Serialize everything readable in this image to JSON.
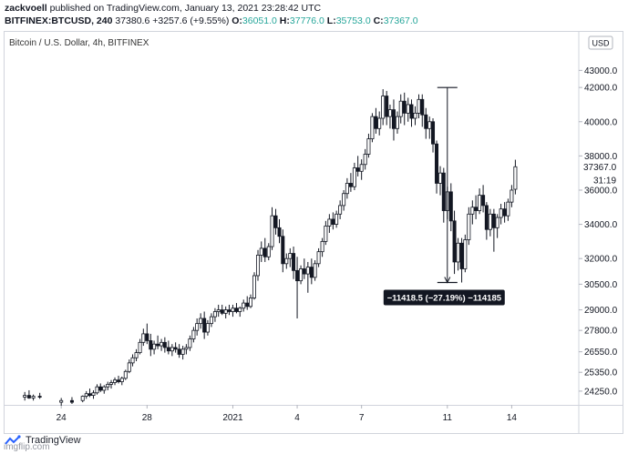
{
  "header": {
    "author": "zackvoell",
    "published": "published on TradingView.com, January 13, 2021 23:28:42 UTC",
    "symbol": "BITFINEX:BTCUSD, 240",
    "price": "37380.6",
    "change": "+3257.6 (+9.55%)",
    "o_label": "O:",
    "o_value": "36051.0",
    "h_label": "H:",
    "h_value": "37776.0",
    "l_label": "L:",
    "l_value": "35753.0",
    "c_label": "C:",
    "c_value": "37367.0"
  },
  "chart_title": "Bitcoin / U.S. Dollar, 4h, BITFINEX",
  "currency_button": "USD",
  "footer": {
    "brand": "TradingView",
    "watermark": "imgflip.com"
  },
  "colors": {
    "candle_up": "#ffffff",
    "candle_down": "#131722",
    "badge_bg": "#131722",
    "accent_green": "#26a69a"
  },
  "chart_data": {
    "type": "candlestick",
    "title": "Bitcoin / U.S. Dollar, 4h, BITFINEX",
    "xlabel": "",
    "ylabel": "",
    "ylim": [
      23500,
      45200
    ],
    "y_ticks": [
      "24250.0",
      "25350.0",
      "26550.0",
      "27800.0",
      "29000.0",
      "30500.0",
      "32000.0",
      "34000.0",
      "36000.0",
      "38000.0",
      "40000.0",
      "42000.0",
      "43000.0"
    ],
    "x_ticks": [
      {
        "label": "24",
        "x": 0
      },
      {
        "label": "28",
        "x": 4
      },
      {
        "label": "2021",
        "x": 8
      },
      {
        "label": "4",
        "x": 11
      },
      {
        "label": "7",
        "x": 14
      },
      {
        "label": "11",
        "x": 18
      },
      {
        "label": "14",
        "x": 21
      }
    ],
    "x_range": [
      -2.6,
      24
    ],
    "last_price": "37367.0",
    "countdown": "31:19",
    "candles": [
      {
        "x": -1.7,
        "o": 23900,
        "h": 24200,
        "l": 23700,
        "c": 24000
      },
      {
        "x": -1.5,
        "o": 24000,
        "h": 24300,
        "l": 23800,
        "c": 23850
      },
      {
        "x": -1.3,
        "o": 23850,
        "h": 24050,
        "l": 23700,
        "c": 23950
      },
      {
        "x": -1.0,
        "o": 23950,
        "h": 24150,
        "l": 23800,
        "c": 23900
      },
      {
        "x": 0.0,
        "o": 23600,
        "h": 23850,
        "l": 23400,
        "c": 23700
      },
      {
        "x": 0.5,
        "o": 23700,
        "h": 23900,
        "l": 23500,
        "c": 23600
      },
      {
        "x": 1.0,
        "o": 23700,
        "h": 24000,
        "l": 23600,
        "c": 23950
      },
      {
        "x": 1.17,
        "o": 23950,
        "h": 24250,
        "l": 23800,
        "c": 24100
      },
      {
        "x": 1.33,
        "o": 24100,
        "h": 24400,
        "l": 23900,
        "c": 24000
      },
      {
        "x": 1.5,
        "o": 24000,
        "h": 24300,
        "l": 23800,
        "c": 24150
      },
      {
        "x": 1.67,
        "o": 24150,
        "h": 24650,
        "l": 24050,
        "c": 24500
      },
      {
        "x": 1.83,
        "o": 24500,
        "h": 24700,
        "l": 24200,
        "c": 24300
      },
      {
        "x": 2.0,
        "o": 24300,
        "h": 24600,
        "l": 24100,
        "c": 24500
      },
      {
        "x": 2.17,
        "o": 24500,
        "h": 24800,
        "l": 24300,
        "c": 24650
      },
      {
        "x": 2.33,
        "o": 24650,
        "h": 24900,
        "l": 24400,
        "c": 24750
      },
      {
        "x": 2.5,
        "o": 24750,
        "h": 25050,
        "l": 24600,
        "c": 24900
      },
      {
        "x": 2.67,
        "o": 24900,
        "h": 25150,
        "l": 24700,
        "c": 24800
      },
      {
        "x": 2.83,
        "o": 24800,
        "h": 25100,
        "l": 24600,
        "c": 25000
      },
      {
        "x": 3.0,
        "o": 25000,
        "h": 25500,
        "l": 24900,
        "c": 25400
      },
      {
        "x": 3.17,
        "o": 25400,
        "h": 26100,
        "l": 25300,
        "c": 25900
      },
      {
        "x": 3.33,
        "o": 25900,
        "h": 26400,
        "l": 25700,
        "c": 26200
      },
      {
        "x": 3.5,
        "o": 26200,
        "h": 26700,
        "l": 26000,
        "c": 26500
      },
      {
        "x": 3.67,
        "o": 26500,
        "h": 27300,
        "l": 26400,
        "c": 27100
      },
      {
        "x": 3.83,
        "o": 27100,
        "h": 27900,
        "l": 26900,
        "c": 27600
      },
      {
        "x": 4.0,
        "o": 27600,
        "h": 28200,
        "l": 27000,
        "c": 27200
      },
      {
        "x": 4.17,
        "o": 27200,
        "h": 27600,
        "l": 26300,
        "c": 26700
      },
      {
        "x": 4.33,
        "o": 26700,
        "h": 27200,
        "l": 26400,
        "c": 27000
      },
      {
        "x": 4.5,
        "o": 27000,
        "h": 27500,
        "l": 26700,
        "c": 26900
      },
      {
        "x": 4.67,
        "o": 26900,
        "h": 27300,
        "l": 26600,
        "c": 27100
      },
      {
        "x": 4.83,
        "o": 27100,
        "h": 27400,
        "l": 26500,
        "c": 26800
      },
      {
        "x": 5.0,
        "o": 26800,
        "h": 27200,
        "l": 26400,
        "c": 26600
      },
      {
        "x": 5.17,
        "o": 26600,
        "h": 27000,
        "l": 26300,
        "c": 26800
      },
      {
        "x": 5.33,
        "o": 26800,
        "h": 27100,
        "l": 26500,
        "c": 26700
      },
      {
        "x": 5.5,
        "o": 26700,
        "h": 27000,
        "l": 26200,
        "c": 26400
      },
      {
        "x": 5.67,
        "o": 26400,
        "h": 26900,
        "l": 26100,
        "c": 26700
      },
      {
        "x": 5.83,
        "o": 26700,
        "h": 27000,
        "l": 26400,
        "c": 26800
      },
      {
        "x": 6.0,
        "o": 26800,
        "h": 27500,
        "l": 26600,
        "c": 27300
      },
      {
        "x": 6.17,
        "o": 27300,
        "h": 28000,
        "l": 27100,
        "c": 27800
      },
      {
        "x": 6.33,
        "o": 27800,
        "h": 28500,
        "l": 27500,
        "c": 28200
      },
      {
        "x": 6.5,
        "o": 28200,
        "h": 28800,
        "l": 27900,
        "c": 28500
      },
      {
        "x": 6.67,
        "o": 28500,
        "h": 28900,
        "l": 27300,
        "c": 27700
      },
      {
        "x": 6.83,
        "o": 27700,
        "h": 28400,
        "l": 27500,
        "c": 28200
      },
      {
        "x": 7.0,
        "o": 28200,
        "h": 28800,
        "l": 28000,
        "c": 28600
      },
      {
        "x": 7.17,
        "o": 28600,
        "h": 29100,
        "l": 28300,
        "c": 28900
      },
      {
        "x": 7.33,
        "o": 28900,
        "h": 29300,
        "l": 28600,
        "c": 29000
      },
      {
        "x": 7.5,
        "o": 29000,
        "h": 29300,
        "l": 28700,
        "c": 28800
      },
      {
        "x": 7.67,
        "o": 28800,
        "h": 29200,
        "l": 28500,
        "c": 29000
      },
      {
        "x": 7.83,
        "o": 29000,
        "h": 29300,
        "l": 28700,
        "c": 28900
      },
      {
        "x": 8.0,
        "o": 28900,
        "h": 29300,
        "l": 28600,
        "c": 29100
      },
      {
        "x": 8.17,
        "o": 29100,
        "h": 29400,
        "l": 28800,
        "c": 28900
      },
      {
        "x": 8.33,
        "o": 28900,
        "h": 29200,
        "l": 28600,
        "c": 29100
      },
      {
        "x": 8.5,
        "o": 29100,
        "h": 29600,
        "l": 28900,
        "c": 29400
      },
      {
        "x": 8.67,
        "o": 29400,
        "h": 29800,
        "l": 29000,
        "c": 29200
      },
      {
        "x": 8.83,
        "o": 29200,
        "h": 29900,
        "l": 29100,
        "c": 29700
      },
      {
        "x": 9.0,
        "o": 29700,
        "h": 31200,
        "l": 29600,
        "c": 31000
      },
      {
        "x": 9.17,
        "o": 31000,
        "h": 32500,
        "l": 30700,
        "c": 32200
      },
      {
        "x": 9.33,
        "o": 32200,
        "h": 33000,
        "l": 31800,
        "c": 32600
      },
      {
        "x": 9.5,
        "o": 32600,
        "h": 33200,
        "l": 31800,
        "c": 32100
      },
      {
        "x": 9.67,
        "o": 32100,
        "h": 32900,
        "l": 31900,
        "c": 32700
      },
      {
        "x": 9.83,
        "o": 32700,
        "h": 35000,
        "l": 32500,
        "c": 34500
      },
      {
        "x": 10.0,
        "o": 34500,
        "h": 34900,
        "l": 33400,
        "c": 33800
      },
      {
        "x": 10.17,
        "o": 33800,
        "h": 34300,
        "l": 32900,
        "c": 33300
      },
      {
        "x": 10.33,
        "o": 33300,
        "h": 33700,
        "l": 31200,
        "c": 31700
      },
      {
        "x": 10.5,
        "o": 31700,
        "h": 32300,
        "l": 31400,
        "c": 32000
      },
      {
        "x": 10.67,
        "o": 32000,
        "h": 32600,
        "l": 31500,
        "c": 32300
      },
      {
        "x": 10.83,
        "o": 32300,
        "h": 32700,
        "l": 30800,
        "c": 31300
      },
      {
        "x": 11.0,
        "o": 31300,
        "h": 32100,
        "l": 28500,
        "c": 30700
      },
      {
        "x": 11.17,
        "o": 30700,
        "h": 31600,
        "l": 30500,
        "c": 31400
      },
      {
        "x": 11.33,
        "o": 31400,
        "h": 32000,
        "l": 30800,
        "c": 31100
      },
      {
        "x": 11.5,
        "o": 31100,
        "h": 31800,
        "l": 30000,
        "c": 31500
      },
      {
        "x": 11.67,
        "o": 31500,
        "h": 32000,
        "l": 30500,
        "c": 30900
      },
      {
        "x": 11.83,
        "o": 30900,
        "h": 31900,
        "l": 30700,
        "c": 31700
      },
      {
        "x": 12.0,
        "o": 31700,
        "h": 32600,
        "l": 31500,
        "c": 32400
      },
      {
        "x": 12.17,
        "o": 32400,
        "h": 33200,
        "l": 32100,
        "c": 33000
      },
      {
        "x": 12.33,
        "o": 33000,
        "h": 34200,
        "l": 32800,
        "c": 33900
      },
      {
        "x": 12.5,
        "o": 33900,
        "h": 34600,
        "l": 33500,
        "c": 34300
      },
      {
        "x": 12.67,
        "o": 34300,
        "h": 34700,
        "l": 33700,
        "c": 34000
      },
      {
        "x": 12.83,
        "o": 34000,
        "h": 34800,
        "l": 33800,
        "c": 34600
      },
      {
        "x": 13.0,
        "o": 34600,
        "h": 35400,
        "l": 34300,
        "c": 35100
      },
      {
        "x": 13.17,
        "o": 35100,
        "h": 36000,
        "l": 34800,
        "c": 35800
      },
      {
        "x": 13.33,
        "o": 35800,
        "h": 36700,
        "l": 35500,
        "c": 36400
      },
      {
        "x": 13.5,
        "o": 36400,
        "h": 37000,
        "l": 35900,
        "c": 36200
      },
      {
        "x": 13.67,
        "o": 36200,
        "h": 37600,
        "l": 36000,
        "c": 37300
      },
      {
        "x": 13.83,
        "o": 37300,
        "h": 38000,
        "l": 36800,
        "c": 37100
      },
      {
        "x": 14.0,
        "o": 37100,
        "h": 37800,
        "l": 36600,
        "c": 37500
      },
      {
        "x": 14.17,
        "o": 37500,
        "h": 38400,
        "l": 37200,
        "c": 38100
      },
      {
        "x": 14.33,
        "o": 38100,
        "h": 39300,
        "l": 37900,
        "c": 39000
      },
      {
        "x": 14.5,
        "o": 39000,
        "h": 40500,
        "l": 38800,
        "c": 40300
      },
      {
        "x": 14.67,
        "o": 40300,
        "h": 40800,
        "l": 39300,
        "c": 39600
      },
      {
        "x": 14.83,
        "o": 39600,
        "h": 40600,
        "l": 39200,
        "c": 40200
      },
      {
        "x": 15.0,
        "o": 40200,
        "h": 41900,
        "l": 39800,
        "c": 41500
      },
      {
        "x": 15.17,
        "o": 41500,
        "h": 41800,
        "l": 39800,
        "c": 40300
      },
      {
        "x": 15.33,
        "o": 40300,
        "h": 41000,
        "l": 39600,
        "c": 40700
      },
      {
        "x": 15.5,
        "o": 40700,
        "h": 41300,
        "l": 38900,
        "c": 39600
      },
      {
        "x": 15.67,
        "o": 39600,
        "h": 40600,
        "l": 39300,
        "c": 40300
      },
      {
        "x": 15.83,
        "o": 40300,
        "h": 41600,
        "l": 39900,
        "c": 41200
      },
      {
        "x": 16.0,
        "o": 41200,
        "h": 41700,
        "l": 39800,
        "c": 40500
      },
      {
        "x": 16.17,
        "o": 40500,
        "h": 41400,
        "l": 40000,
        "c": 41000
      },
      {
        "x": 16.33,
        "o": 41000,
        "h": 41300,
        "l": 39700,
        "c": 40200
      },
      {
        "x": 16.5,
        "o": 40200,
        "h": 40900,
        "l": 39800,
        "c": 40500
      },
      {
        "x": 16.67,
        "o": 40500,
        "h": 41600,
        "l": 40200,
        "c": 41300
      },
      {
        "x": 16.83,
        "o": 41300,
        "h": 41600,
        "l": 39700,
        "c": 40400
      },
      {
        "x": 17.0,
        "o": 40400,
        "h": 40800,
        "l": 39000,
        "c": 39600
      },
      {
        "x": 17.17,
        "o": 39600,
        "h": 40300,
        "l": 39000,
        "c": 40000
      },
      {
        "x": 17.33,
        "o": 40000,
        "h": 40200,
        "l": 38200,
        "c": 38700
      },
      {
        "x": 17.5,
        "o": 38700,
        "h": 38900,
        "l": 35800,
        "c": 36400
      },
      {
        "x": 17.67,
        "o": 36400,
        "h": 37400,
        "l": 35700,
        "c": 37000
      },
      {
        "x": 17.83,
        "o": 37000,
        "h": 37300,
        "l": 34100,
        "c": 34800
      },
      {
        "x": 18.0,
        "o": 34800,
        "h": 36200,
        "l": 34300,
        "c": 35900
      },
      {
        "x": 18.17,
        "o": 35900,
        "h": 36400,
        "l": 33600,
        "c": 34200
      },
      {
        "x": 18.33,
        "o": 34200,
        "h": 34800,
        "l": 31100,
        "c": 31800
      },
      {
        "x": 18.5,
        "o": 31800,
        "h": 33200,
        "l": 31300,
        "c": 32900
      },
      {
        "x": 18.67,
        "o": 32900,
        "h": 33200,
        "l": 30600,
        "c": 31400
      },
      {
        "x": 18.83,
        "o": 31400,
        "h": 33400,
        "l": 31200,
        "c": 33100
      },
      {
        "x": 19.0,
        "o": 33100,
        "h": 35000,
        "l": 32800,
        "c": 34600
      },
      {
        "x": 19.17,
        "o": 34600,
        "h": 35400,
        "l": 34000,
        "c": 35000
      },
      {
        "x": 19.33,
        "o": 35000,
        "h": 35700,
        "l": 34300,
        "c": 34800
      },
      {
        "x": 19.5,
        "o": 34800,
        "h": 36100,
        "l": 34600,
        "c": 35700
      },
      {
        "x": 19.67,
        "o": 35700,
        "h": 36300,
        "l": 34700,
        "c": 35100
      },
      {
        "x": 19.83,
        "o": 35100,
        "h": 35300,
        "l": 33100,
        "c": 33700
      },
      {
        "x": 20.0,
        "o": 33700,
        "h": 34900,
        "l": 33300,
        "c": 34600
      },
      {
        "x": 20.17,
        "o": 34600,
        "h": 34900,
        "l": 32400,
        "c": 33800
      },
      {
        "x": 20.33,
        "o": 33800,
        "h": 34600,
        "l": 33200,
        "c": 34400
      },
      {
        "x": 20.5,
        "o": 34400,
        "h": 35200,
        "l": 34000,
        "c": 34900
      },
      {
        "x": 20.67,
        "o": 34900,
        "h": 35300,
        "l": 34100,
        "c": 34500
      },
      {
        "x": 20.83,
        "o": 34500,
        "h": 35500,
        "l": 34200,
        "c": 35300
      },
      {
        "x": 21.0,
        "o": 35300,
        "h": 36300,
        "l": 35000,
        "c": 36000
      },
      {
        "x": 21.17,
        "o": 36051,
        "h": 37776,
        "l": 35753,
        "c": 37367
      }
    ],
    "measure": {
      "x": 18.0,
      "high": 42000,
      "low": 30600,
      "label": "−11418.5 (−27.19%) −114185"
    }
  }
}
